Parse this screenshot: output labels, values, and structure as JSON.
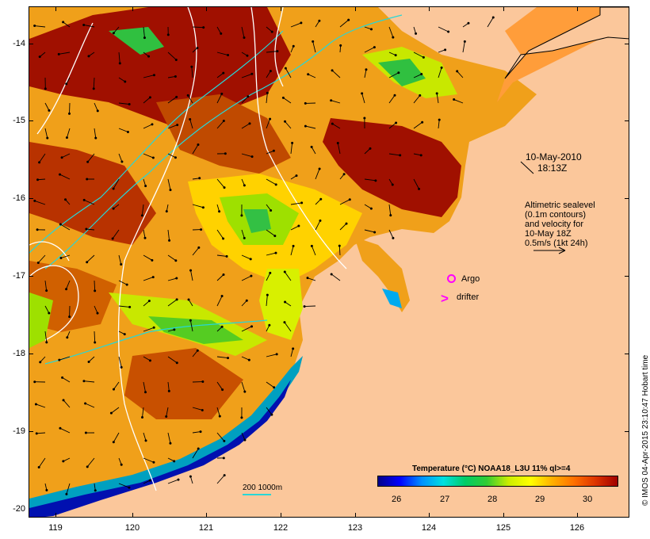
{
  "map": {
    "lat_ticks": [
      "-14",
      "-15",
      "-16",
      "-17",
      "-18",
      "-19",
      "-20"
    ],
    "lon_ticks": [
      "119",
      "120",
      "121",
      "122",
      "123",
      "124",
      "125",
      "126"
    ],
    "date_label": "10-May-2010",
    "time_label": "18:13Z",
    "altimetry_note": [
      "Altimetric sealevel",
      "(0.1m contours)",
      "and velocity for",
      "10-May 18Z"
    ],
    "velocity_scale_label": "0.5m/s (1kt 24h)",
    "legend": {
      "argo": "Argo",
      "drifter": "drifter"
    },
    "isobath_key": "200  1000m",
    "colorbar": {
      "title": "Temperature (°C) NOAA18_L3U 11% ql>=4",
      "ticks": [
        "26",
        "27",
        "28",
        "29",
        "30"
      ]
    },
    "credit": "© IMOS 04-Apr-2015 23:10:47 Hobart time",
    "colors": {
      "land": "#fbc79b",
      "isobath": "#27d7d7",
      "marker": "#ff00ff",
      "sst_hot": "#a00000",
      "sst_cool": "#0000ff"
    }
  }
}
